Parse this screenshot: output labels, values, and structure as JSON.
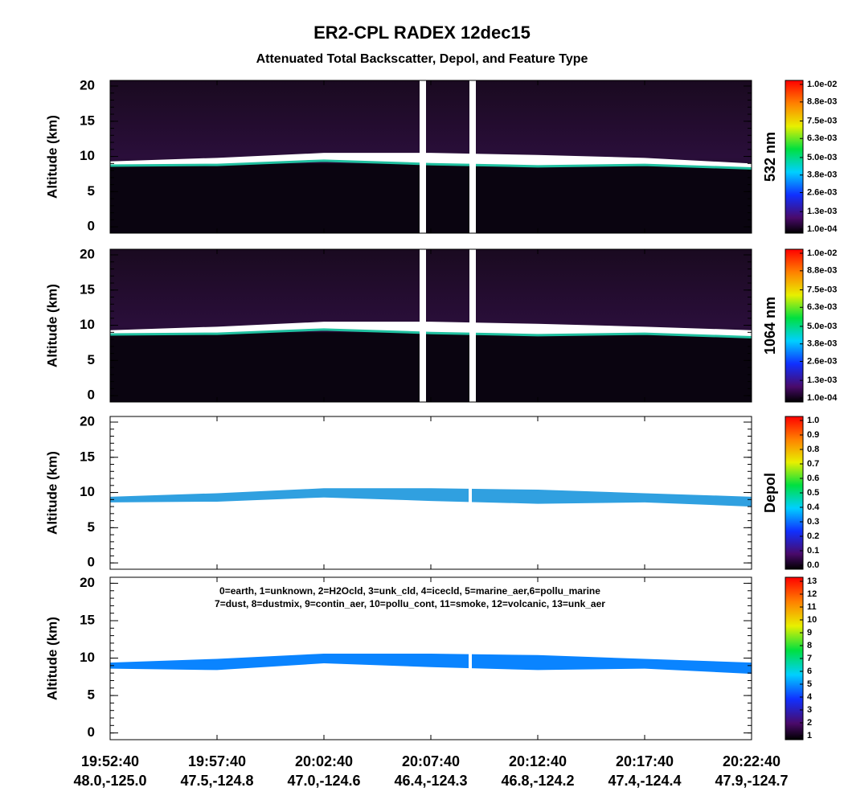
{
  "title": "ER2-CPL RADEX 12dec15",
  "subtitle": "Attenuated Total Backscatter, Depol, and Feature Type",
  "chart_data": [
    {
      "type": "heatmap",
      "ylabel": "Altitude (km)",
      "ylim": [
        -0.9,
        20.8
      ],
      "yticks": [
        0,
        5,
        10,
        15,
        20
      ],
      "layer_top": [
        9.3,
        9.8,
        10.5,
        10.5,
        10.2,
        9.8,
        9.0
      ],
      "layer_base": [
        8.7,
        8.8,
        9.4,
        8.9,
        8.6,
        8.8,
        8.3
      ],
      "colorbar_label": "532 nm",
      "colorbar_lim": [
        0.0001,
        0.01
      ],
      "colorbar_ticks": [
        {
          "value": 0.0001,
          "label": "1.0e-04"
        },
        {
          "value": 0.0013,
          "label": "1.3e-03"
        },
        {
          "value": 0.0026,
          "label": "2.6e-03"
        },
        {
          "value": 0.0038,
          "label": "3.8e-03"
        },
        {
          "value": 0.005,
          "label": "5.0e-03"
        },
        {
          "value": 0.0063,
          "label": "6.3e-03"
        },
        {
          "value": 0.0075,
          "label": "7.5e-03"
        },
        {
          "value": 0.0088,
          "label": "8.8e-03"
        },
        {
          "value": 0.01,
          "label": "1.0e-02"
        }
      ],
      "background": "#000000",
      "color": "#ffffff"
    },
    {
      "type": "heatmap",
      "ylabel": "Altitude (km)",
      "ylim": [
        -0.9,
        20.8
      ],
      "yticks": [
        0,
        5,
        10,
        15,
        20
      ],
      "layer_top": [
        9.3,
        9.8,
        10.5,
        10.5,
        10.2,
        9.8,
        9.3
      ],
      "layer_base": [
        8.7,
        8.8,
        9.4,
        8.9,
        8.6,
        8.8,
        8.3
      ],
      "colorbar_label": "1064 nm",
      "colorbar_lim": [
        0.0001,
        0.01
      ],
      "colorbar_ticks": [
        {
          "value": 0.0001,
          "label": "1.0e-04"
        },
        {
          "value": 0.0013,
          "label": "1.3e-03"
        },
        {
          "value": 0.0026,
          "label": "2.6e-03"
        },
        {
          "value": 0.0038,
          "label": "3.8e-03"
        },
        {
          "value": 0.005,
          "label": "5.0e-03"
        },
        {
          "value": 0.0063,
          "label": "6.3e-03"
        },
        {
          "value": 0.0075,
          "label": "7.5e-03"
        },
        {
          "value": 0.0088,
          "label": "8.8e-03"
        },
        {
          "value": 0.01,
          "label": "1.0e-02"
        }
      ],
      "background": "#000000",
      "color": "#ffffff"
    },
    {
      "type": "heatmap",
      "ylabel": "Altitude (km)",
      "ylim": [
        -0.9,
        20.8
      ],
      "yticks": [
        0,
        5,
        10,
        15,
        20
      ],
      "layer_top": [
        9.4,
        9.9,
        10.6,
        10.6,
        10.4,
        9.9,
        9.4
      ],
      "layer_base": [
        8.6,
        8.7,
        9.3,
        8.8,
        8.4,
        8.6,
        8.0
      ],
      "colorbar_label": "Depol",
      "colorbar_lim": [
        0,
        1
      ],
      "colorbar_ticks": [
        {
          "value": 0,
          "label": "0.0"
        },
        0.1,
        0.2,
        0.3,
        0.4,
        0.5,
        0.6,
        0.7,
        0.8,
        0.9,
        {
          "value": 1,
          "label": "1.0"
        }
      ],
      "background": "#ffffff",
      "color": "#30a0e0"
    },
    {
      "type": "heatmap",
      "ylabel": "Altitude (km)",
      "ylim": [
        -0.9,
        20.8
      ],
      "yticks": [
        0,
        5,
        10,
        15,
        20
      ],
      "layer_top": [
        9.4,
        9.9,
        10.6,
        10.6,
        10.4,
        9.9,
        9.4
      ],
      "layer_base": [
        8.6,
        8.4,
        9.3,
        8.8,
        8.4,
        8.6,
        7.9
      ],
      "annotation": [
        "0=earth, 1=unknown, 2=H2Ocld, 3=unk_cld, 4=icecld, 5=marine_aer,6=pollu_marine",
        "7=dust, 8=dustmix, 9=contin_aer, 10=pollu_cont, 11=smoke, 12=volcanic, 13=unk_aer"
      ],
      "colorbar_lim": [
        1,
        13
      ],
      "colorbar_ticks": [
        1,
        2,
        3,
        4,
        5,
        6,
        7,
        8,
        9,
        10,
        11,
        12,
        13
      ],
      "categories": [
        "19:52:40",
        "19:57:40",
        "20:02:40",
        "20:07:40",
        "20:12:40",
        "20:17:40",
        "20:22:40"
      ],
      "sublabels": [
        "48.0,-125.0",
        "47.5,-124.8",
        "47.0,-124.6",
        "46.4,-124.3",
        "46.8,-124.2",
        "47.4,-124.4",
        "47.9,-124.7"
      ],
      "background": "#ffffff",
      "color": "#0a84ff"
    }
  ]
}
